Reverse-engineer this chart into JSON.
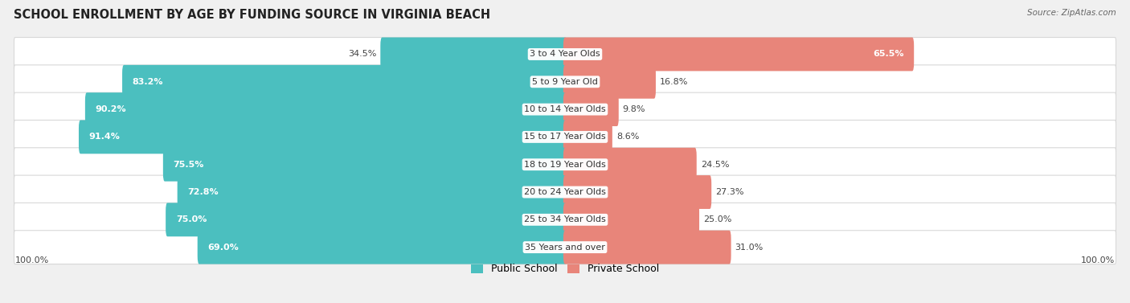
{
  "title": "SCHOOL ENROLLMENT BY AGE BY FUNDING SOURCE IN VIRGINIA BEACH",
  "source": "Source: ZipAtlas.com",
  "categories": [
    "3 to 4 Year Olds",
    "5 to 9 Year Old",
    "10 to 14 Year Olds",
    "15 to 17 Year Olds",
    "18 to 19 Year Olds",
    "20 to 24 Year Olds",
    "25 to 34 Year Olds",
    "35 Years and over"
  ],
  "public_values": [
    34.5,
    83.2,
    90.2,
    91.4,
    75.5,
    72.8,
    75.0,
    69.0
  ],
  "private_values": [
    65.5,
    16.8,
    9.8,
    8.6,
    24.5,
    27.3,
    25.0,
    31.0
  ],
  "public_color": "#4bbfbf",
  "private_color": "#e8857a",
  "background_color": "#f0f0f0",
  "row_bg_color": "#ffffff",
  "row_border_color": "#d8d8d8",
  "bar_height": 0.62,
  "title_fontsize": 10.5,
  "label_fontsize": 8.0,
  "cat_fontsize": 8.0,
  "legend_fontsize": 9,
  "x_left_label": "100.0%",
  "x_right_label": "100.0%",
  "scale": 0.93
}
